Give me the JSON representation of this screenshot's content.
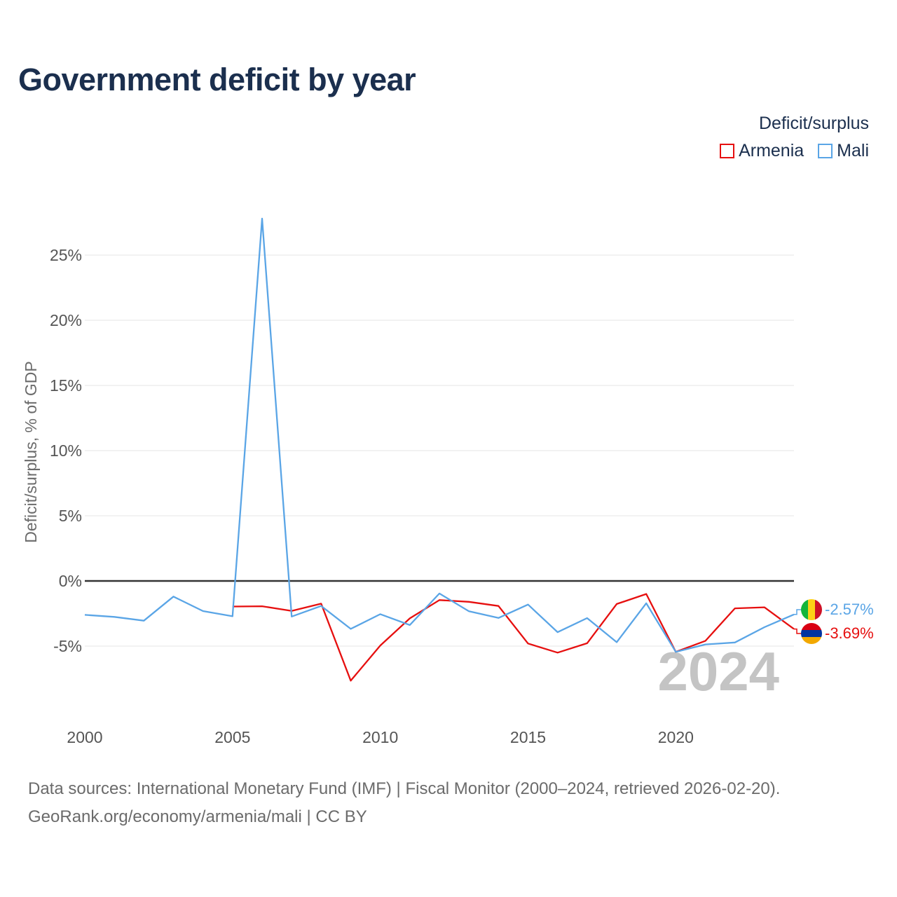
{
  "title": "Government deficit by year",
  "legend": {
    "title": "Deficit/surplus",
    "items": [
      {
        "name": "Armenia",
        "color": "#e60f0f"
      },
      {
        "name": "Mali",
        "color": "#5aa5e6"
      }
    ]
  },
  "chart_data": {
    "type": "line",
    "title": "Government deficit by year",
    "xlabel": "",
    "ylabel": "Deficit/surplus, % of GDP",
    "xlim": [
      2000,
      2024
    ],
    "ylim": [
      -10,
      27
    ],
    "x_ticks": [
      2000,
      2005,
      2010,
      2015,
      2020
    ],
    "x_tick_labels": [
      "2000",
      "2005",
      "2010",
      "2015",
      "2020"
    ],
    "y_ticks": [
      -5,
      0,
      5,
      10,
      15,
      20,
      25
    ],
    "y_tick_labels": [
      "-5%",
      "0%",
      "5%",
      "10%",
      "15%",
      "20%",
      "25%"
    ],
    "year_watermark": "2024",
    "series": [
      {
        "name": "Armenia",
        "color": "#e60f0f",
        "x": [
          2005,
          2006,
          2007,
          2008,
          2009,
          2010,
          2011,
          2012,
          2013,
          2014,
          2015,
          2016,
          2017,
          2018,
          2019,
          2020,
          2021,
          2022,
          2023,
          2024
        ],
        "values": [
          -1.96,
          -1.94,
          -2.3,
          -1.74,
          -7.65,
          -4.95,
          -2.87,
          -1.47,
          -1.6,
          -1.92,
          -4.8,
          -5.5,
          -4.78,
          -1.77,
          -1.0,
          -5.44,
          -4.6,
          -2.1,
          -2.02,
          -3.69
        ],
        "end_label": "-3.69%"
      },
      {
        "name": "Mali",
        "color": "#5aa5e6",
        "x": [
          2000,
          2001,
          2002,
          2003,
          2004,
          2005,
          2006,
          2007,
          2008,
          2009,
          2010,
          2011,
          2012,
          2013,
          2014,
          2015,
          2016,
          2017,
          2018,
          2019,
          2020,
          2021,
          2022,
          2023,
          2024
        ],
        "values": [
          -2.6,
          -2.76,
          -3.05,
          -1.2,
          -2.31,
          -2.71,
          27.8,
          -2.73,
          -1.92,
          -3.68,
          -2.55,
          -3.38,
          -0.96,
          -2.33,
          -2.84,
          -1.81,
          -3.93,
          -2.85,
          -4.7,
          -1.71,
          -5.44,
          -4.87,
          -4.72,
          -3.55,
          -2.57
        ],
        "end_label": "-2.57%"
      }
    ]
  },
  "source": {
    "line1": "Data sources: International Monetary Fund (IMF) | Fiscal Monitor (2000–2024, retrieved 2026-02-20).",
    "line2": "GeoRank.org/economy/armenia/mali | CC BY"
  }
}
